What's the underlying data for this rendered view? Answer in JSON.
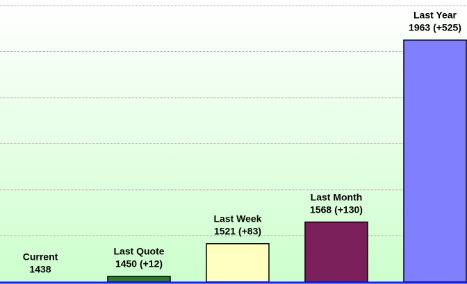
{
  "chart_data": {
    "type": "bar",
    "categories": [
      "Current",
      "Last Quote",
      "Last Week",
      "Last Month",
      "Last Year"
    ],
    "values": [
      1438,
      1450,
      1521,
      1568,
      1963
    ],
    "value_labels": [
      "1438",
      "1450 (+12)",
      "1521 (+83)",
      "1568 (+130)",
      "1963 (+525)"
    ],
    "colors": [
      "#2a7a2a",
      "#2a7a2a",
      "#ffffc0",
      "#7a1f5a",
      "#8080ff"
    ],
    "ylim": [
      1438,
      2038
    ],
    "yticks": [
      1438,
      1538,
      1638,
      1738,
      1838,
      1938,
      2038
    ],
    "grid": true
  }
}
